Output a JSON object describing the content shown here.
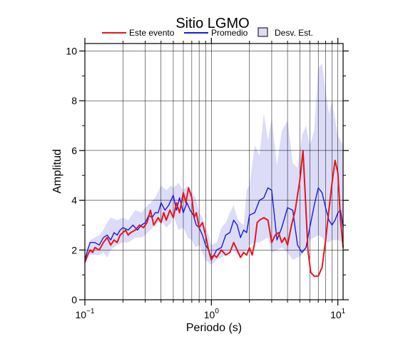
{
  "chart_data": {
    "type": "line",
    "title": "Sitio LGMO",
    "xlabel": "Periodo (s)",
    "ylabel": "Amplitud",
    "xscale": "log",
    "xlim": [
      0.1,
      11.0
    ],
    "ylim": [
      0,
      10.3
    ],
    "grid": true,
    "legend_position": "top",
    "x_ticks": [
      {
        "value": 0.1,
        "base": "10",
        "exp": "−1"
      },
      {
        "value": 1,
        "base": "10",
        "exp": "0"
      },
      {
        "value": 10,
        "base": "10",
        "exp": "1"
      }
    ],
    "y_ticks": [
      0,
      2,
      4,
      6,
      8,
      10
    ],
    "legend": [
      {
        "label": "Este evento",
        "kind": "line",
        "color": "#e8141b"
      },
      {
        "label": "Promedio",
        "kind": "line",
        "color": "#1a1adc"
      },
      {
        "label": "Desv. Est.",
        "kind": "box",
        "color": "#dcdcf8"
      }
    ],
    "series": [
      {
        "name": "Este evento",
        "color": "#e8141b",
        "x": [
          0.1,
          0.105,
          0.11,
          0.115,
          0.12,
          0.13,
          0.14,
          0.15,
          0.16,
          0.17,
          0.18,
          0.19,
          0.2,
          0.21,
          0.22,
          0.23,
          0.25,
          0.27,
          0.29,
          0.31,
          0.33,
          0.35,
          0.38,
          0.4,
          0.42,
          0.44,
          0.47,
          0.5,
          0.53,
          0.56,
          0.6,
          0.63,
          0.66,
          0.7,
          0.73,
          0.76,
          0.8,
          0.85,
          0.9,
          0.95,
          1.0,
          1.05,
          1.1,
          1.2,
          1.3,
          1.4,
          1.5,
          1.6,
          1.7,
          1.8,
          1.9,
          2.0,
          2.1,
          2.2,
          2.3,
          2.4,
          2.6,
          2.8,
          3.0,
          3.2,
          3.4,
          3.6,
          3.8,
          4.0,
          4.3,
          4.6,
          5.0,
          5.3,
          5.5,
          5.8,
          6.1,
          6.5,
          7.0,
          7.5,
          8.0,
          8.5,
          9.0,
          9.5,
          10.0,
          10.5,
          11.0
        ],
        "values": [
          1.5,
          1.8,
          2.0,
          1.9,
          2.1,
          2.0,
          2.3,
          2.5,
          2.2,
          2.4,
          2.3,
          2.6,
          2.7,
          2.8,
          2.6,
          2.7,
          2.8,
          3.0,
          2.9,
          3.1,
          3.6,
          3.0,
          3.3,
          3.1,
          3.5,
          3.2,
          3.6,
          3.3,
          3.9,
          3.5,
          4.3,
          3.9,
          4.5,
          4.1,
          3.3,
          3.5,
          2.9,
          3.1,
          2.6,
          2.0,
          1.6,
          1.8,
          1.7,
          2.0,
          1.8,
          1.9,
          2.3,
          2.0,
          1.7,
          1.9,
          1.8,
          2.1,
          1.8,
          2.3,
          3.1,
          3.2,
          3.3,
          3.2,
          2.3,
          2.6,
          2.7,
          2.3,
          2.5,
          2.2,
          3.0,
          3.6,
          4.8,
          6.0,
          4.4,
          2.0,
          1.1,
          0.95,
          0.95,
          1.3,
          2.4,
          3.6,
          4.7,
          5.6,
          5.1,
          3.2,
          2.1
        ]
      },
      {
        "name": "Promedio",
        "color": "#1a1adc",
        "x": [
          0.1,
          0.105,
          0.11,
          0.12,
          0.13,
          0.14,
          0.15,
          0.16,
          0.17,
          0.18,
          0.19,
          0.2,
          0.22,
          0.24,
          0.26,
          0.28,
          0.3,
          0.32,
          0.34,
          0.36,
          0.38,
          0.4,
          0.43,
          0.46,
          0.5,
          0.53,
          0.56,
          0.6,
          0.64,
          0.68,
          0.72,
          0.76,
          0.8,
          0.85,
          0.9,
          0.95,
          1.0,
          1.05,
          1.1,
          1.2,
          1.3,
          1.4,
          1.5,
          1.6,
          1.7,
          1.8,
          1.9,
          2.0,
          2.2,
          2.4,
          2.6,
          2.8,
          3.0,
          3.3,
          3.6,
          4.0,
          4.4,
          4.8,
          5.2,
          5.6,
          6.0,
          6.5,
          7.0,
          7.5,
          8.0,
          8.5,
          9.0,
          9.5,
          10.0,
          10.5,
          11.0
        ],
        "values": [
          1.6,
          2.0,
          2.3,
          2.3,
          2.2,
          2.5,
          2.6,
          2.4,
          2.7,
          2.6,
          2.8,
          2.9,
          2.8,
          3.0,
          2.8,
          3.0,
          3.1,
          3.4,
          3.3,
          3.5,
          3.5,
          3.9,
          3.6,
          3.8,
          4.2,
          3.6,
          4.1,
          3.5,
          3.9,
          3.6,
          3.4,
          3.0,
          2.9,
          2.6,
          2.2,
          2.0,
          1.7,
          1.8,
          2.0,
          2.1,
          2.6,
          2.7,
          3.2,
          3.0,
          2.5,
          2.8,
          2.7,
          3.4,
          3.5,
          4.0,
          4.1,
          4.5,
          4.4,
          2.4,
          2.9,
          3.7,
          3.6,
          2.2,
          1.9,
          2.1,
          2.9,
          3.8,
          4.5,
          4.3,
          3.7,
          3.2,
          3.0,
          3.2,
          3.5,
          3.6,
          2.9
        ]
      }
    ],
    "std_band": {
      "label": "Desv. Est.",
      "color": "#dcdcf8",
      "x": [
        0.1,
        0.11,
        0.12,
        0.13,
        0.14,
        0.15,
        0.16,
        0.18,
        0.2,
        0.22,
        0.25,
        0.28,
        0.3,
        0.33,
        0.36,
        0.4,
        0.44,
        0.48,
        0.5,
        0.55,
        0.6,
        0.65,
        0.7,
        0.75,
        0.8,
        0.85,
        0.9,
        0.95,
        1.0,
        1.1,
        1.2,
        1.3,
        1.4,
        1.5,
        1.6,
        1.7,
        1.8,
        1.9,
        2.0,
        2.2,
        2.4,
        2.6,
        2.8,
        3.0,
        3.3,
        3.6,
        4.0,
        4.4,
        4.8,
        5.2,
        5.6,
        6.0,
        6.5,
        7.0,
        7.5,
        8.0,
        8.5,
        9.0,
        10.0,
        11.0
      ],
      "lower": [
        1.5,
        1.8,
        1.8,
        1.8,
        1.9,
        1.7,
        2.0,
        2.2,
        2.3,
        2.3,
        2.5,
        2.5,
        2.6,
        2.8,
        3.0,
        3.2,
        2.9,
        3.1,
        3.4,
        2.8,
        2.9,
        2.5,
        2.4,
        2.1,
        2.2,
        1.9,
        1.6,
        1.5,
        1.4,
        1.6,
        1.7,
        1.8,
        2.0,
        2.0,
        1.8,
        1.8,
        1.9,
        2.0,
        2.2,
        2.3,
        2.3,
        2.4,
        2.5,
        1.9,
        2.0,
        2.1,
        1.9,
        1.6,
        1.7,
        1.8,
        2.0,
        2.4,
        2.5,
        2.6,
        2.5,
        2.3,
        2.3,
        2.4,
        2.4,
        2.3
      ],
      "upper": [
        1.7,
        2.4,
        2.5,
        2.6,
        2.8,
        3.1,
        3.3,
        3.2,
        3.3,
        3.2,
        3.6,
        3.5,
        3.7,
        3.9,
        4.1,
        4.6,
        4.4,
        4.6,
        4.5,
        4.7,
        4.4,
        4.6,
        4.3,
        4.1,
        3.5,
        3.3,
        2.9,
        2.6,
        2.2,
        2.3,
        2.9,
        3.1,
        3.5,
        3.8,
        3.3,
        3.1,
        3.0,
        4.4,
        4.6,
        6.2,
        5.8,
        7.5,
        6.4,
        7.3,
        5.4,
        6.8,
        7.2,
        5.5,
        5.3,
        6.6,
        7.0,
        6.2,
        6.8,
        9.3,
        9.5,
        8.4,
        7.5,
        8.0,
        6.6,
        6.2
      ]
    }
  }
}
